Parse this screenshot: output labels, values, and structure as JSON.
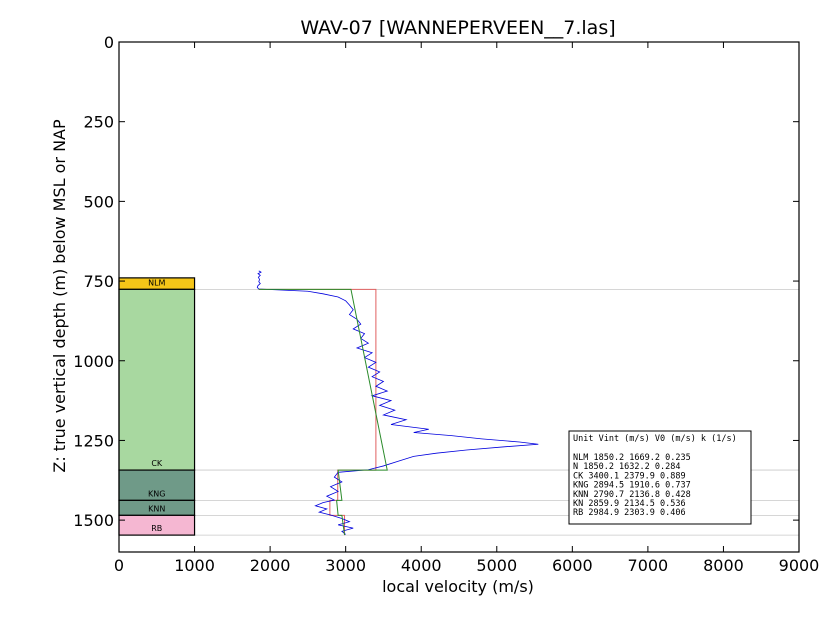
{
  "chart_data": {
    "type": "line",
    "title": "WAV-07 [WANNEPERVEEN__7.las]",
    "xlabel": "local velocity (m/s)",
    "ylabel": "Z: true vertical depth (m) below MSL or NAP",
    "xlim": [
      0,
      9000
    ],
    "ylim": [
      1600,
      0
    ],
    "y_inverted": true,
    "xticks": [
      0,
      1000,
      2000,
      3000,
      4000,
      5000,
      6000,
      7000,
      8000,
      9000
    ],
    "yticks": [
      0,
      250,
      500,
      750,
      1000,
      1250,
      1500
    ],
    "units": [
      {
        "name": "NLM",
        "top": 740,
        "bottom": 776,
        "color": "#f5c518",
        "label": "NLM"
      },
      {
        "name": "CK",
        "top": 776,
        "bottom": 1343,
        "color": "#a8d8a0",
        "label": "CK"
      },
      {
        "name": "KNG",
        "top": 1343,
        "bottom": 1438,
        "color": "#6f9a88",
        "label": "KNG"
      },
      {
        "name": "KNN",
        "top": 1438,
        "bottom": 1485,
        "color": "#6f9a88",
        "label": "KNN"
      },
      {
        "name": "RB",
        "top": 1485,
        "bottom": 1547,
        "color": "#f5b7d2",
        "label": "RB"
      }
    ],
    "boundaries": [
      776,
      1343,
      1438,
      1485,
      1547
    ],
    "interval_velocity": {
      "color": "#e06060",
      "steps": [
        {
          "top": 776,
          "bottom": 1343,
          "v": 3400
        },
        {
          "top": 1343,
          "bottom": 1438,
          "v": 2895
        },
        {
          "top": 1438,
          "bottom": 1485,
          "v": 2791
        },
        {
          "top": 1485,
          "bottom": 1547,
          "v": 2985
        }
      ]
    },
    "trend_line": {
      "color": "#2a8a2a",
      "points": [
        [
          1850,
          776
        ],
        [
          3070,
          776
        ],
        [
          3550,
          1343
        ],
        [
          2900,
          1343
        ],
        [
          2950,
          1438
        ],
        [
          2880,
          1438
        ],
        [
          2900,
          1485
        ],
        [
          2950,
          1485
        ],
        [
          2985,
          1547
        ]
      ]
    },
    "log_series": {
      "color": "#0000dd",
      "points": [
        [
          1850,
          718
        ],
        [
          1880,
          722
        ],
        [
          1840,
          727
        ],
        [
          1870,
          732
        ],
        [
          1845,
          738
        ],
        [
          1860,
          745
        ],
        [
          1850,
          752
        ],
        [
          1870,
          758
        ],
        [
          1840,
          764
        ],
        [
          1830,
          770
        ],
        [
          1850,
          775
        ],
        [
          2500,
          782
        ],
        [
          2700,
          790
        ],
        [
          2900,
          800
        ],
        [
          3000,
          812
        ],
        [
          3050,
          825
        ],
        [
          3100,
          840
        ],
        [
          3050,
          855
        ],
        [
          3150,
          870
        ],
        [
          3200,
          885
        ],
        [
          3100,
          900
        ],
        [
          3250,
          915
        ],
        [
          3200,
          930
        ],
        [
          3300,
          945
        ],
        [
          3150,
          960
        ],
        [
          3350,
          975
        ],
        [
          3250,
          990
        ],
        [
          3400,
          1005
        ],
        [
          3300,
          1020
        ],
        [
          3450,
          1035
        ],
        [
          3350,
          1050
        ],
        [
          3500,
          1065
        ],
        [
          3400,
          1080
        ],
        [
          3550,
          1095
        ],
        [
          3350,
          1110
        ],
        [
          3600,
          1125
        ],
        [
          3450,
          1140
        ],
        [
          3650,
          1155
        ],
        [
          3500,
          1170
        ],
        [
          3800,
          1185
        ],
        [
          3600,
          1200
        ],
        [
          4100,
          1215
        ],
        [
          3900,
          1225
        ],
        [
          4400,
          1235
        ],
        [
          4800,
          1245
        ],
        [
          5300,
          1255
        ],
        [
          5550,
          1262
        ],
        [
          5100,
          1270
        ],
        [
          4600,
          1280
        ],
        [
          4200,
          1290
        ],
        [
          3900,
          1300
        ],
        [
          3700,
          1315
        ],
        [
          3500,
          1330
        ],
        [
          3300,
          1342
        ],
        [
          2900,
          1350
        ],
        [
          2850,
          1365
        ],
        [
          2950,
          1380
        ],
        [
          2800,
          1395
        ],
        [
          2900,
          1410
        ],
        [
          2750,
          1425
        ],
        [
          2850,
          1437
        ],
        [
          2700,
          1445
        ],
        [
          2600,
          1455
        ],
        [
          2750,
          1465
        ],
        [
          2650,
          1475
        ],
        [
          2800,
          1484
        ],
        [
          2950,
          1495
        ],
        [
          3050,
          1505
        ],
        [
          2900,
          1515
        ],
        [
          3100,
          1525
        ],
        [
          2950,
          1535
        ],
        [
          3000,
          1545
        ]
      ]
    },
    "legend": {
      "placement": "lower-right",
      "header": "Unit    Vint (m/s)       V0 (m/s)          k (1/s)",
      "rows": [
        "NLM     1850.2  1669.2  0.235",
        "N         1850.2  1632.2  0.284",
        "CK      3400.1  2379.9  0.889",
        "KNG     2894.5  1910.6  0.737",
        "KNN     2790.7  2136.8  0.428",
        "KN       2859.9  2134.5  0.536",
        "RB       2984.9  2303.9  0.406"
      ]
    }
  }
}
